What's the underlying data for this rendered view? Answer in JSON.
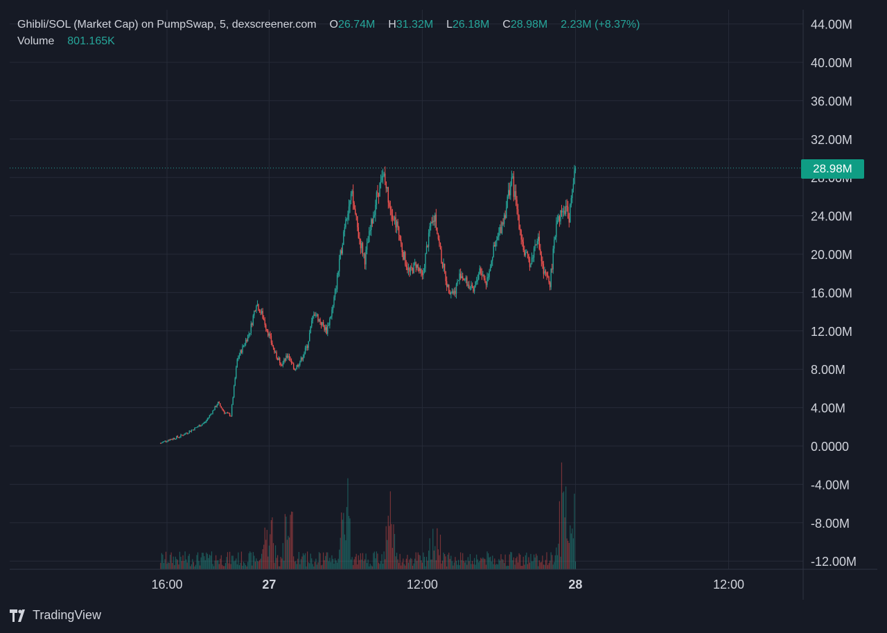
{
  "legend": {
    "title": "Ghibli/SOL (Market Cap) on PumpSwap, 5, dexscreener.com",
    "o_label": "O",
    "o_value": "26.74M",
    "h_label": "H",
    "h_value": "31.32M",
    "l_label": "L",
    "l_value": "26.18M",
    "c_label": "C",
    "c_value": "28.98M",
    "change": "2.23M (+8.37%)",
    "volume_label": "Volume",
    "volume_value": "801.165K"
  },
  "last_price_label": "28.98M",
  "brand": {
    "name": "TradingView",
    "icon": "tradingview-logo-icon"
  },
  "colors": {
    "background": "#161a25",
    "grid": "#262b38",
    "up": "#26a69a",
    "down": "#ef5350",
    "price_tag": "#0f9d84",
    "text": "#d1d4dc"
  },
  "chart_data": {
    "type": "candlestick",
    "interval": "5",
    "y_ticks": [
      "44.00M",
      "40.00M",
      "36.00M",
      "32.00M",
      "28.00M",
      "24.00M",
      "20.00M",
      "16.00M",
      "12.00M",
      "8.00M",
      "4.00M",
      "0.0000",
      "-4.00M",
      "-8.00M",
      "-12.00M"
    ],
    "y_tick_values": [
      44,
      40,
      36,
      32,
      28,
      24,
      20,
      16,
      12,
      8,
      4,
      0,
      -4,
      -8,
      -12
    ],
    "ylim": [
      -12,
      44
    ],
    "y_unit": "M",
    "x_ticks": [
      {
        "label": "16:00",
        "bold": false,
        "t": 0
      },
      {
        "label": "27",
        "bold": true,
        "t": 8
      },
      {
        "label": "12:00",
        "bold": false,
        "t": 20
      },
      {
        "label": "28",
        "bold": true,
        "t": 32
      },
      {
        "label": "12:00",
        "bold": false,
        "t": 44
      }
    ],
    "x_unit": "hours since 16:00 on the 26th",
    "last_close": 28.98,
    "price_path_hours": [
      -0.5,
      0,
      1,
      2,
      3,
      4,
      4.5,
      5,
      5.5,
      6,
      6.5,
      7,
      7.5,
      8,
      8.5,
      9,
      9.5,
      10,
      10.5,
      11,
      11.5,
      12,
      12.5,
      13,
      13.5,
      14,
      14.5,
      15,
      15.5,
      16,
      16.5,
      17,
      17.5,
      18,
      18.5,
      19,
      19.5,
      20,
      20.5,
      21,
      21.5,
      22,
      22.5,
      23,
      23.5,
      24,
      24.5,
      25,
      25.5,
      26,
      26.5,
      27,
      27.5,
      28,
      28.5,
      29,
      29.5,
      30,
      30.5,
      31,
      31.5,
      32
    ],
    "price_path_values": [
      0.3,
      0.6,
      1.0,
      1.7,
      2.5,
      4.5,
      3.5,
      3.2,
      9.0,
      10.5,
      12.0,
      15.0,
      13.5,
      11.5,
      9.5,
      8.5,
      9.5,
      8.0,
      9.0,
      10.5,
      14.0,
      13.0,
      12.0,
      14.5,
      19.0,
      24.0,
      26.0,
      22.0,
      19.5,
      23.0,
      26.5,
      28.0,
      25.0,
      23.0,
      20.0,
      18.0,
      19.0,
      17.5,
      22.0,
      24.0,
      19.5,
      16.5,
      16.0,
      18.0,
      17.0,
      16.0,
      18.5,
      17.0,
      20.0,
      22.0,
      24.5,
      28.0,
      24.0,
      20.0,
      19.0,
      22.0,
      18.0,
      17.0,
      23.0,
      25.0,
      24.0,
      28.98
    ],
    "volume_note": "volume histogram at bottom of pane, peak bars near 16:00+8h (27), ~9.5h, 14h and 31h"
  }
}
